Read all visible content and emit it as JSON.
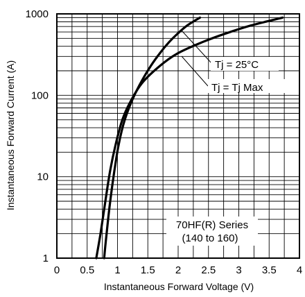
{
  "chart_data": {
    "type": "line",
    "xlabel": "Instantaneous Forward Voltage (V)",
    "ylabel": "Instantaneous Forward Current (A)",
    "xlim": [
      0,
      4
    ],
    "ylim": [
      1,
      1000
    ],
    "yscale": "log",
    "grid": true,
    "x_ticks": [
      "0",
      "0.5",
      "1",
      "1.5",
      "2",
      "2.5",
      "3",
      "3.5",
      "4"
    ],
    "y_ticks": [
      "1",
      "10",
      "100",
      "1000"
    ],
    "series": [
      {
        "name": "Tj = 25°C",
        "x": [
          0.78,
          0.82,
          0.88,
          0.95,
          1.02,
          1.12,
          1.25,
          1.4,
          1.55,
          1.7,
          1.85,
          2.0,
          2.15,
          2.36
        ],
        "y": [
          1,
          2,
          5,
          12,
          25,
          50,
          90,
          150,
          230,
          330,
          450,
          580,
          720,
          900
        ]
      },
      {
        "name": "Tj = Tj Max",
        "x": [
          0.65,
          0.72,
          0.8,
          0.88,
          0.97,
          1.08,
          1.2,
          1.4,
          1.7,
          2.0,
          2.4,
          2.8,
          3.2,
          3.72
        ],
        "y": [
          1,
          2,
          5,
          12,
          25,
          50,
          80,
          140,
          230,
          330,
          450,
          580,
          720,
          900
        ]
      }
    ],
    "annotations": [
      {
        "text": "Tj = 25°C",
        "points_to": {
          "x": 2.02,
          "y": 600
        }
      },
      {
        "text": "Tj = Tj Max",
        "points_to": {
          "x": 2.05,
          "y": 340
        }
      },
      {
        "text": "70HF(R) Series"
      },
      {
        "text": "(140 to 160)"
      }
    ]
  }
}
